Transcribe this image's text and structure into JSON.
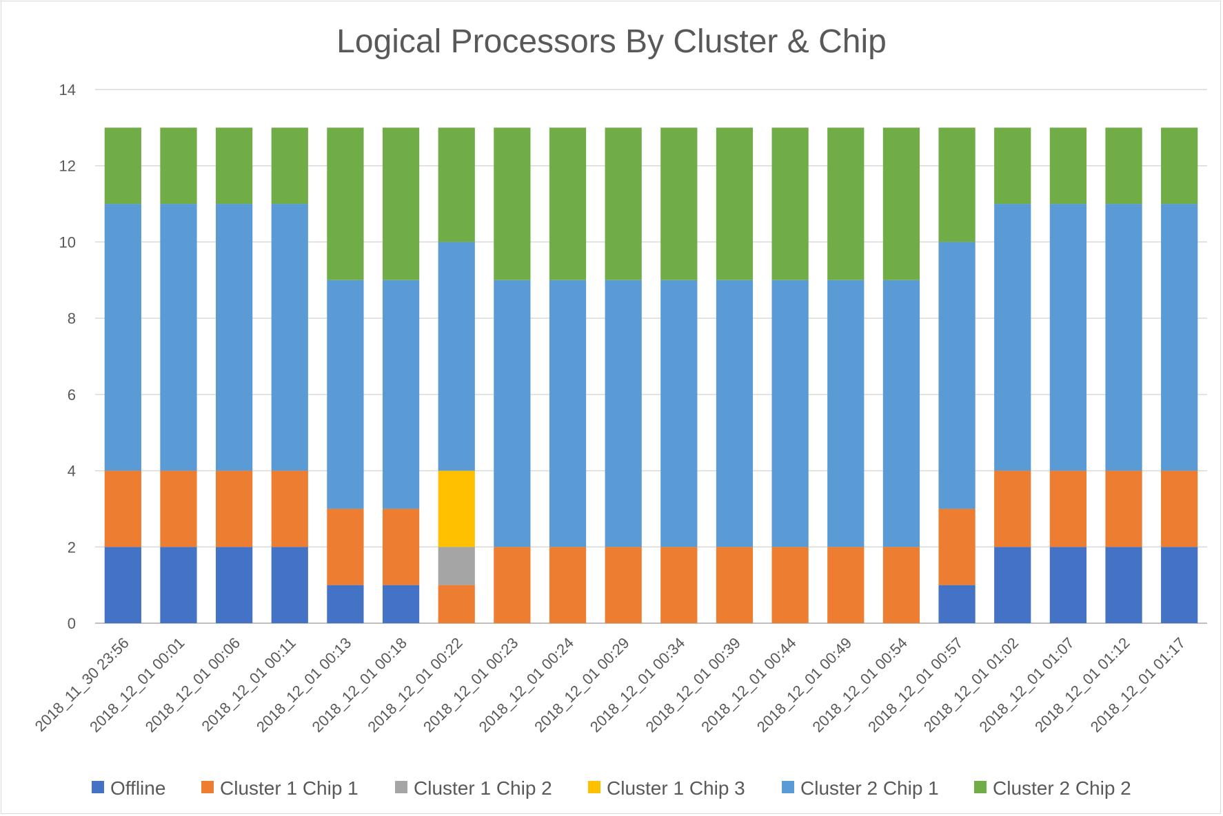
{
  "chart_data": {
    "type": "bar",
    "stacked": true,
    "title": "Logical Processors By Cluster & Chip",
    "xlabel": "",
    "ylabel": "",
    "ylim": [
      0,
      14
    ],
    "yticks": [
      0,
      2,
      4,
      6,
      8,
      10,
      12,
      14
    ],
    "grid": true,
    "legend_position": "bottom",
    "categories": [
      "2018_11_30 23:56",
      "2018_12_01 00:01",
      "2018_12_01 00:06",
      "2018_12_01 00:11",
      "2018_12_01 00:13",
      "2018_12_01 00:18",
      "2018_12_01 00:22",
      "2018_12_01 00:23",
      "2018_12_01 00:24",
      "2018_12_01 00:29",
      "2018_12_01 00:34",
      "2018_12_01 00:39",
      "2018_12_01 00:44",
      "2018_12_01 00:49",
      "2018_12_01 00:54",
      "2018_12_01 00:57",
      "2018_12_01 01:02",
      "2018_12_01 01:07",
      "2018_12_01 01:12",
      "2018_12_01 01:17"
    ],
    "series": [
      {
        "name": "Offline",
        "color": "#4472c4",
        "values": [
          2,
          2,
          2,
          2,
          1,
          1,
          0,
          0,
          0,
          0,
          0,
          0,
          0,
          0,
          0,
          1,
          2,
          2,
          2,
          2
        ]
      },
      {
        "name": "Cluster 1 Chip 1",
        "color": "#ed7d31",
        "values": [
          2,
          2,
          2,
          2,
          2,
          2,
          1,
          2,
          2,
          2,
          2,
          2,
          2,
          2,
          2,
          2,
          2,
          2,
          2,
          2
        ]
      },
      {
        "name": "Cluster 1 Chip 2",
        "color": "#a5a5a5",
        "values": [
          0,
          0,
          0,
          0,
          0,
          0,
          1,
          0,
          0,
          0,
          0,
          0,
          0,
          0,
          0,
          0,
          0,
          0,
          0,
          0
        ]
      },
      {
        "name": "Cluster 1 Chip 3",
        "color": "#ffc000",
        "values": [
          0,
          0,
          0,
          0,
          0,
          0,
          2,
          0,
          0,
          0,
          0,
          0,
          0,
          0,
          0,
          0,
          0,
          0,
          0,
          0
        ]
      },
      {
        "name": "Cluster 2 Chip 1",
        "color": "#5b9bd5",
        "values": [
          7,
          7,
          7,
          7,
          6,
          6,
          6,
          7,
          7,
          7,
          7,
          7,
          7,
          7,
          7,
          7,
          7,
          7,
          7,
          7
        ]
      },
      {
        "name": "Cluster 2 Chip 2",
        "color": "#70ad47",
        "values": [
          2,
          2,
          2,
          2,
          4,
          4,
          3,
          4,
          4,
          4,
          4,
          4,
          4,
          4,
          4,
          3,
          2,
          2,
          2,
          2
        ]
      }
    ]
  }
}
